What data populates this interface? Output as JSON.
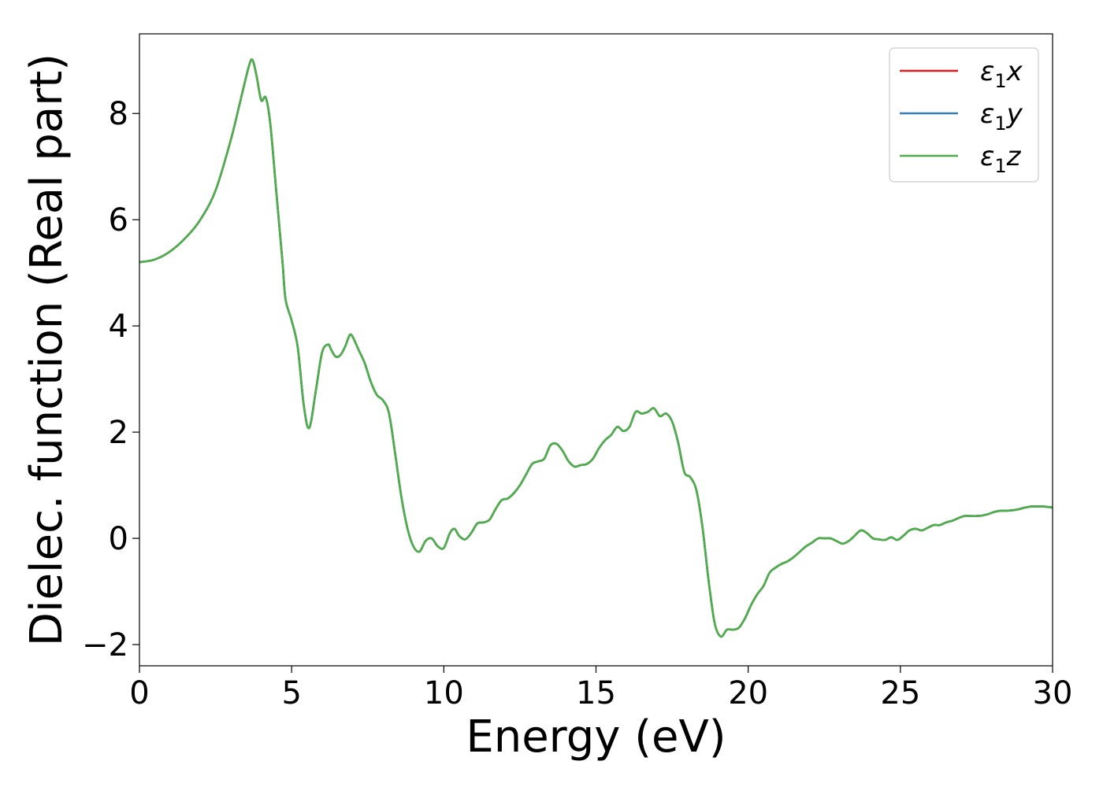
{
  "chart_data": {
    "type": "line",
    "title": "",
    "xlabel": "Energy (eV)",
    "ylabel": "Dielec. function (Real part)",
    "xlim": [
      0,
      30
    ],
    "ylim": [
      -2.4,
      9.5
    ],
    "xticks": [
      0,
      5,
      10,
      15,
      20,
      25,
      30
    ],
    "xtick_labels": [
      "0",
      "5",
      "10",
      "15",
      "20",
      "25",
      "30"
    ],
    "yticks": [
      -2,
      0,
      2,
      4,
      6,
      8
    ],
    "ytick_labels": [
      "−2",
      "0",
      "2",
      "4",
      "6",
      "8"
    ],
    "grid": false,
    "legend_position": "top-right",
    "series": [
      {
        "name": "ε₁x",
        "legend_base": "ε",
        "legend_sub": "1",
        "legend_suffix": "x",
        "color": "#e41a1c",
        "x": [
          0,
          0.5,
          1,
          1.5,
          2,
          2.5,
          3,
          3.3,
          3.6,
          3.72,
          3.85,
          4.0,
          4.15,
          4.3,
          4.5,
          4.7,
          4.8,
          5.0,
          5.2,
          5.4,
          5.58,
          5.8,
          6.0,
          6.2,
          6.3,
          6.45,
          6.6,
          6.75,
          6.9,
          7.0,
          7.2,
          7.4,
          7.6,
          7.8,
          8.0,
          8.2,
          8.4,
          8.6,
          8.8,
          9.0,
          9.2,
          9.4,
          9.6,
          9.8,
          10.0,
          10.2,
          10.35,
          10.5,
          10.7,
          10.9,
          11.1,
          11.3,
          11.5,
          11.7,
          11.9,
          12.1,
          12.3,
          12.5,
          12.7,
          12.9,
          13.1,
          13.3,
          13.5,
          13.7,
          13.9,
          14.1,
          14.3,
          14.5,
          14.7,
          14.9,
          15.1,
          15.3,
          15.5,
          15.7,
          15.9,
          16.1,
          16.3,
          16.5,
          16.7,
          16.9,
          17.1,
          17.3,
          17.5,
          17.7,
          17.9,
          18.1,
          18.3,
          18.5,
          18.7,
          18.9,
          19.1,
          19.3,
          19.5,
          19.7,
          19.9,
          20.1,
          20.3,
          20.5,
          20.7,
          20.9,
          21.1,
          21.3,
          21.5,
          21.7,
          21.9,
          22.1,
          22.3,
          22.5,
          22.7,
          22.9,
          23.1,
          23.3,
          23.5,
          23.7,
          23.9,
          24.1,
          24.3,
          24.5,
          24.7,
          24.9,
          25.1,
          25.3,
          25.5,
          25.7,
          25.9,
          26.1,
          26.3,
          26.5,
          26.7,
          26.9,
          27.1,
          27.3,
          27.5,
          27.7,
          27.9,
          28.1,
          28.3,
          28.5,
          28.7,
          28.9,
          29.1,
          29.3,
          29.5,
          29.7,
          30
        ],
        "y": [
          5.2,
          5.25,
          5.4,
          5.65,
          6.0,
          6.55,
          7.5,
          8.2,
          8.9,
          9.0,
          8.7,
          8.25,
          8.3,
          7.8,
          6.5,
          5.2,
          4.5,
          4.1,
          3.6,
          2.5,
          2.08,
          2.8,
          3.5,
          3.65,
          3.55,
          3.42,
          3.45,
          3.6,
          3.82,
          3.8,
          3.55,
          3.3,
          2.95,
          2.7,
          2.6,
          2.35,
          1.6,
          0.8,
          0.2,
          -0.15,
          -0.25,
          -0.05,
          0.0,
          -0.15,
          -0.18,
          0.1,
          0.18,
          0.05,
          -0.02,
          0.1,
          0.28,
          0.3,
          0.35,
          0.55,
          0.72,
          0.75,
          0.85,
          1.0,
          1.2,
          1.4,
          1.45,
          1.5,
          1.75,
          1.78,
          1.65,
          1.45,
          1.35,
          1.38,
          1.4,
          1.5,
          1.7,
          1.85,
          1.95,
          2.1,
          2.02,
          2.1,
          2.38,
          2.35,
          2.38,
          2.45,
          2.3,
          2.35,
          2.2,
          1.8,
          1.25,
          1.15,
          0.9,
          0.2,
          -0.8,
          -1.6,
          -1.85,
          -1.72,
          -1.72,
          -1.68,
          -1.5,
          -1.25,
          -1.05,
          -0.9,
          -0.65,
          -0.55,
          -0.48,
          -0.43,
          -0.35,
          -0.25,
          -0.15,
          -0.08,
          0.0,
          0.0,
          0.0,
          -0.05,
          -0.1,
          -0.05,
          0.05,
          0.15,
          0.1,
          0.0,
          -0.02,
          -0.03,
          0.02,
          -0.03,
          0.05,
          0.15,
          0.18,
          0.15,
          0.2,
          0.25,
          0.25,
          0.3,
          0.33,
          0.38,
          0.42,
          0.42,
          0.42,
          0.43,
          0.46,
          0.5,
          0.52,
          0.52,
          0.53,
          0.55,
          0.58,
          0.6,
          0.6,
          0.6,
          0.58
        ]
      },
      {
        "name": "ε₁y",
        "legend_base": "ε",
        "legend_sub": "1",
        "legend_suffix": "y",
        "color": "#377eb8",
        "same_as": 0
      },
      {
        "name": "ε₁z",
        "legend_base": "ε",
        "legend_sub": "1",
        "legend_suffix": "z",
        "color": "#4daf4a",
        "same_as": 0
      }
    ]
  }
}
